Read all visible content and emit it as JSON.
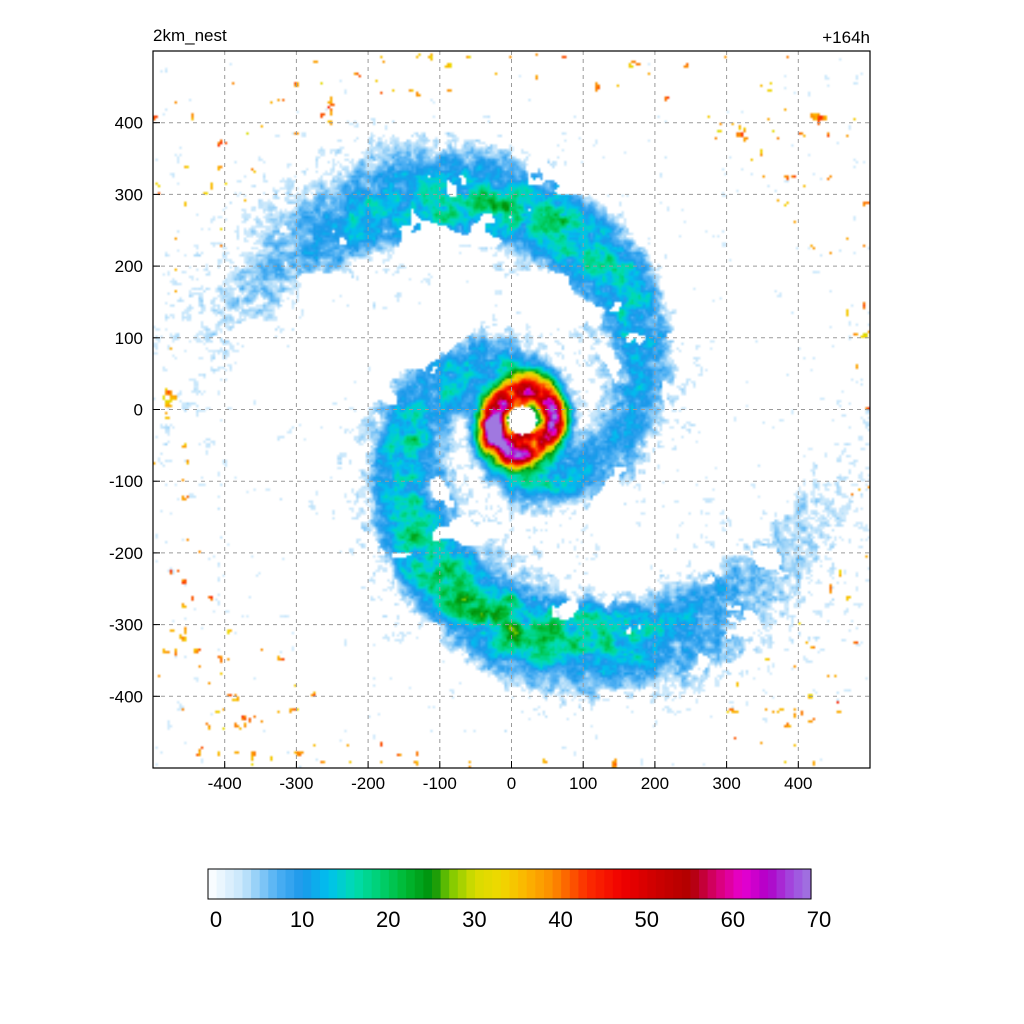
{
  "chart_data": {
    "type": "heatmap",
    "title_left": "2km_nest",
    "title_right": "+164h",
    "xlim": [
      -500,
      500
    ],
    "ylim": [
      -500,
      500
    ],
    "x_ticks": [
      -400,
      -300,
      -200,
      -100,
      0,
      100,
      200,
      300,
      400
    ],
    "y_ticks": [
      400,
      300,
      200,
      100,
      0,
      -100,
      -200,
      -300,
      -400
    ],
    "grid": true,
    "colorbar": {
      "range": [
        0,
        70
      ],
      "ticks": [
        0,
        10,
        20,
        30,
        40,
        50,
        60,
        70
      ],
      "stops": [
        {
          "value": 0,
          "color": "#ffffff"
        },
        {
          "value": 4,
          "color": "#c6e6fb"
        },
        {
          "value": 8,
          "color": "#4fb0f3"
        },
        {
          "value": 11,
          "color": "#1a98ea"
        },
        {
          "value": 14,
          "color": "#00c0ee"
        },
        {
          "value": 17,
          "color": "#00dcb0"
        },
        {
          "value": 20,
          "color": "#00d070"
        },
        {
          "value": 23,
          "color": "#00b830"
        },
        {
          "value": 26,
          "color": "#00900a"
        },
        {
          "value": 28,
          "color": "#78c800"
        },
        {
          "value": 31,
          "color": "#d8dc00"
        },
        {
          "value": 34,
          "color": "#f0d800"
        },
        {
          "value": 37,
          "color": "#fcb400"
        },
        {
          "value": 40,
          "color": "#fc8c00"
        },
        {
          "value": 44,
          "color": "#fc2c00"
        },
        {
          "value": 48,
          "color": "#f00000"
        },
        {
          "value": 52,
          "color": "#cc0000"
        },
        {
          "value": 56,
          "color": "#b00000"
        },
        {
          "value": 59,
          "color": "#d80070"
        },
        {
          "value": 62,
          "color": "#e800d0"
        },
        {
          "value": 65,
          "color": "#b000c8"
        },
        {
          "value": 68,
          "color": "#a050e0"
        },
        {
          "value": 70,
          "color": "#a078e0"
        }
      ]
    },
    "storm": {
      "eye_center": [
        15,
        -15
      ],
      "eye_radius": 20,
      "spiral_arms": 2
    }
  }
}
